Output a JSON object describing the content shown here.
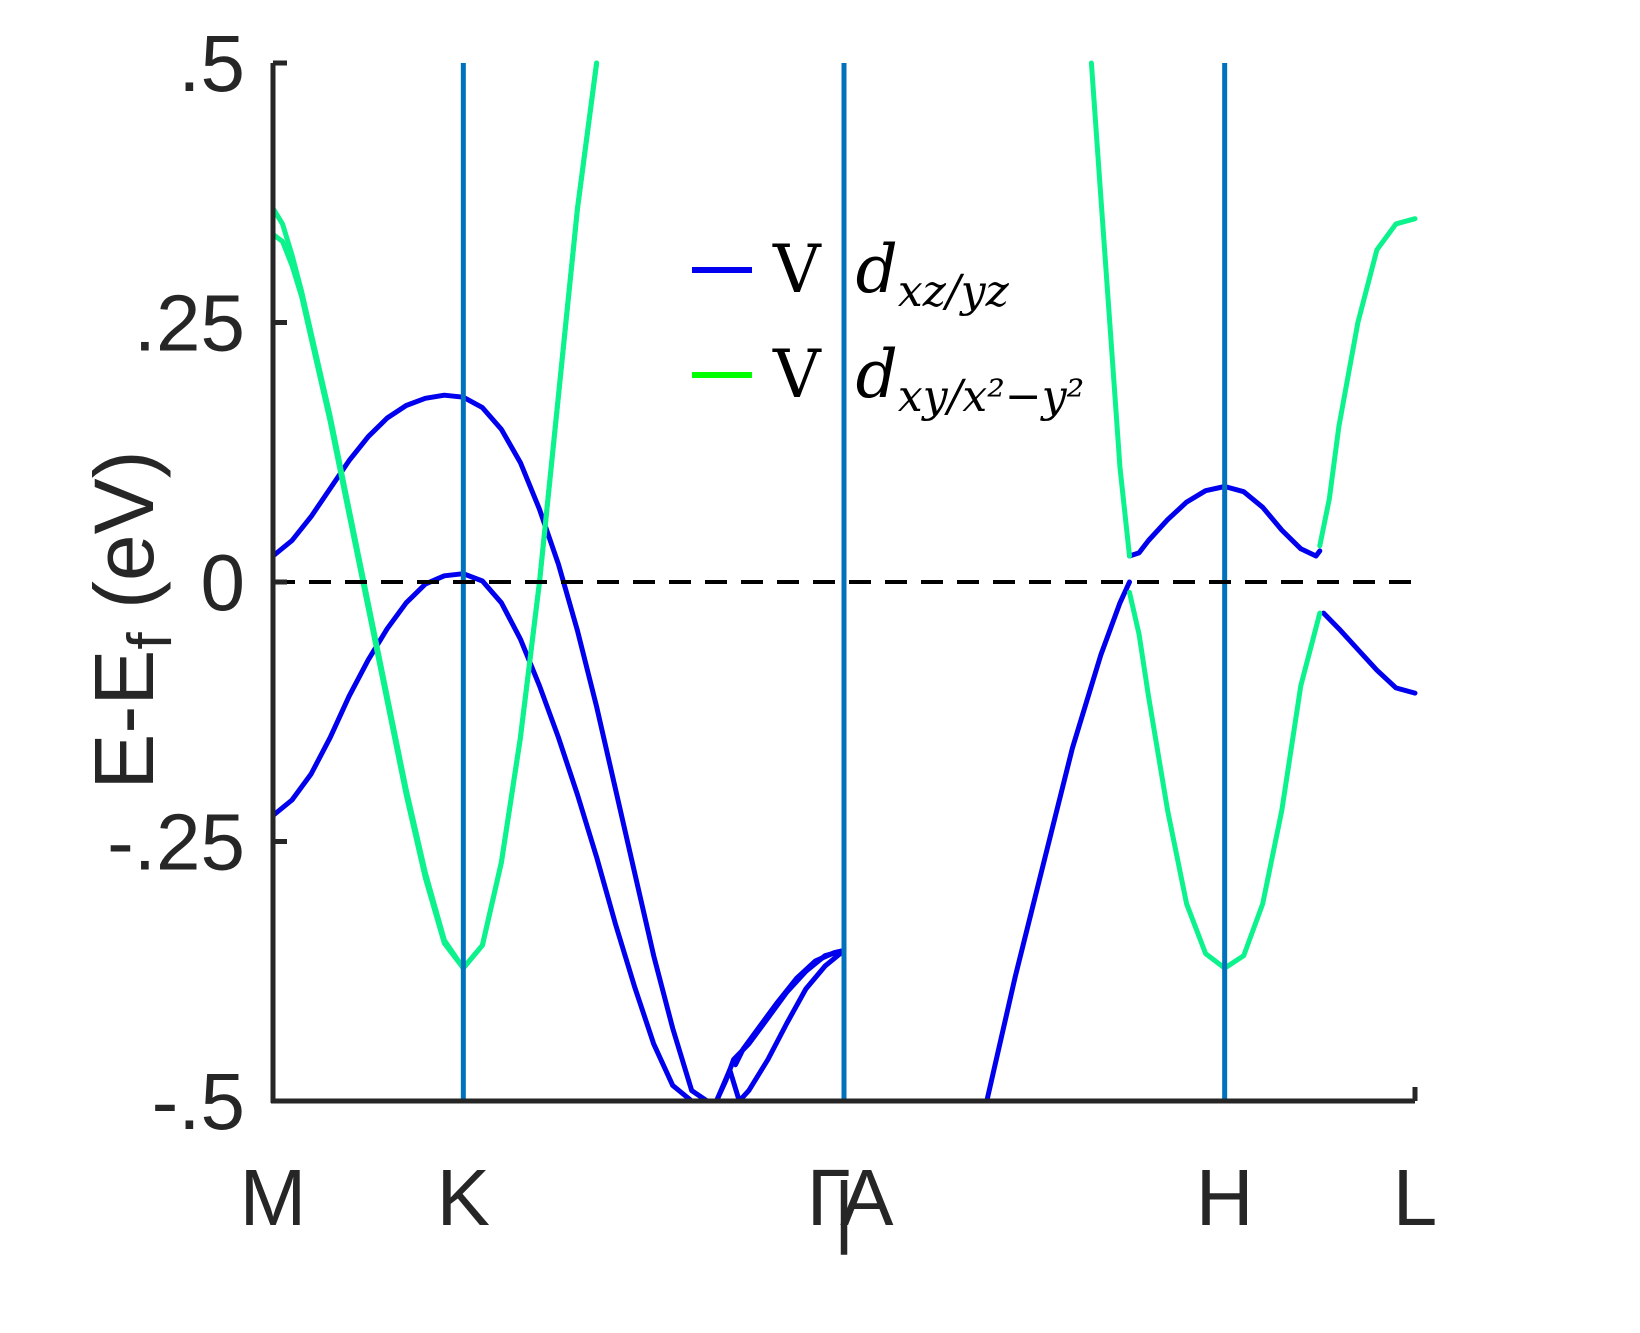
{
  "chart_data": {
    "type": "line",
    "title": "",
    "xlabel": "",
    "ylabel": "E-E_f (eV)",
    "ylabel_main": "E-E",
    "ylabel_sub": "f",
    "ylabel_tail": " (eV)",
    "ylim": [
      -0.5,
      0.5
    ],
    "xlim": [
      0,
      6
    ],
    "y_ticks": [
      {
        "value": -0.5,
        "label": "-.5"
      },
      {
        "value": -0.25,
        "label": "-.25"
      },
      {
        "value": 0,
        "label": "0"
      },
      {
        "value": 0.25,
        "label": ".25"
      },
      {
        "value": 0.5,
        "label": ".5"
      }
    ],
    "x_ticks": [
      {
        "value": 0,
        "label": "M"
      },
      {
        "value": 1,
        "label": "K"
      },
      {
        "value": 2.92,
        "label": "Γ"
      },
      {
        "value": 3.0,
        "label": "|"
      },
      {
        "value": 3.12,
        "label": "A"
      },
      {
        "value": 5,
        "label": "H"
      },
      {
        "value": 6,
        "label": "L"
      }
    ],
    "vlines": [
      1,
      3,
      5
    ],
    "fermi_level": 0,
    "grid": false,
    "legend_position": "upper-center",
    "colors": {
      "dxz": "#0000ee",
      "dxy_legend": "#00ff00",
      "dxy": "#0cf28c",
      "dxy_mix": "#1ab89a",
      "vline": "#0072bd",
      "axis": "#262626",
      "fermi": "#000000"
    },
    "legend": [
      {
        "prefix": "V",
        "math_base": "d",
        "math_sub": "xz/yz",
        "color_key": "dxz"
      },
      {
        "prefix": "V",
        "math_base": "d",
        "math_sub": "xy/x²−y²",
        "color_key": "dxy_legend"
      }
    ],
    "series": [
      {
        "color_key": "dxz",
        "x": [
          0,
          0.1,
          0.2,
          0.3,
          0.4,
          0.5,
          0.6,
          0.7,
          0.8,
          0.9,
          1.0,
          1.1,
          1.2,
          1.3,
          1.4,
          1.5,
          1.6,
          1.7,
          1.8,
          1.9,
          2.0,
          2.1,
          2.2,
          2.28
        ],
        "y": [
          0.025,
          0.04,
          0.063,
          0.09,
          0.117,
          0.14,
          0.158,
          0.17,
          0.177,
          0.18,
          0.178,
          0.168,
          0.147,
          0.115,
          0.07,
          0.017,
          -0.047,
          -0.12,
          -0.2,
          -0.28,
          -0.36,
          -0.43,
          -0.49,
          -0.5
        ]
      },
      {
        "color_key": "dxz",
        "x": [
          0,
          0.1,
          0.2,
          0.3,
          0.4,
          0.5,
          0.6,
          0.7,
          0.8,
          0.9,
          1.0,
          1.1,
          1.2,
          1.3,
          1.4,
          1.5,
          1.6,
          1.7,
          1.8,
          1.9,
          2.0,
          2.1,
          2.2,
          2.33,
          2.4,
          2.45
        ],
        "y": [
          -0.225,
          -0.21,
          -0.185,
          -0.15,
          -0.11,
          -0.075,
          -0.045,
          -0.02,
          -0.002,
          0.006,
          0.008,
          0.001,
          -0.02,
          -0.055,
          -0.1,
          -0.15,
          -0.205,
          -0.265,
          -0.33,
          -0.39,
          -0.445,
          -0.485,
          -0.5,
          -0.5,
          -0.47,
          -0.5
        ]
      },
      {
        "color_key": "dxz",
        "x": [
          2.33,
          2.38,
          2.42,
          2.5,
          2.6,
          2.7,
          2.8,
          2.9,
          3.0
        ],
        "y": [
          -0.5,
          -0.48,
          -0.46,
          -0.445,
          -0.42,
          -0.395,
          -0.375,
          -0.36,
          -0.355
        ]
      },
      {
        "color_key": "dxz",
        "x": [
          2.43,
          2.47,
          2.55,
          2.65,
          2.75,
          2.85,
          2.95,
          3.0
        ],
        "y": [
          -0.465,
          -0.45,
          -0.43,
          -0.405,
          -0.382,
          -0.365,
          -0.357,
          -0.355
        ]
      },
      {
        "color_key": "dxz",
        "x": [
          2.45,
          2.5,
          2.6,
          2.7,
          2.8,
          2.9,
          3.0
        ],
        "y": [
          -0.5,
          -0.49,
          -0.46,
          -0.425,
          -0.392,
          -0.37,
          -0.355
        ]
      },
      {
        "color_key": "dxz",
        "x": [
          3.75,
          3.9,
          4.05,
          4.2,
          4.35,
          4.45,
          4.5
        ],
        "y": [
          -0.5,
          -0.38,
          -0.27,
          -0.16,
          -0.07,
          -0.02,
          0.0
        ]
      },
      {
        "color_key": "dxz",
        "x": [
          4.5,
          4.55,
          4.6,
          4.7,
          4.8,
          4.9,
          5.0,
          5.1,
          5.2,
          5.3,
          5.4,
          5.48,
          5.5
        ],
        "y": [
          0.025,
          0.028,
          0.04,
          0.06,
          0.077,
          0.088,
          0.092,
          0.087,
          0.072,
          0.05,
          0.032,
          0.025,
          0.03
        ]
      },
      {
        "color_key": "dxz",
        "x": [
          5.52,
          5.6,
          5.7,
          5.8,
          5.9,
          6.0
        ],
        "y": [
          -0.03,
          -0.045,
          -0.065,
          -0.085,
          -0.102,
          -0.107
        ]
      },
      {
        "color_key": "dxy",
        "x": [
          0,
          0.05,
          0.1,
          0.15,
          0.2,
          0.3,
          0.4,
          0.5,
          0.6,
          0.7,
          0.8,
          0.9,
          1.0,
          1.1,
          1.2,
          1.3,
          1.4,
          1.5,
          1.6,
          1.7
        ],
        "y": [
          0.36,
          0.345,
          0.315,
          0.28,
          0.24,
          0.16,
          0.07,
          -0.02,
          -0.11,
          -0.2,
          -0.28,
          -0.345,
          -0.372,
          -0.35,
          -0.27,
          -0.15,
          0.0,
          0.18,
          0.36,
          0.5
        ]
      },
      {
        "color_key": "dxy",
        "x": [
          0,
          0.05,
          0.1,
          0.15,
          0.2,
          0.3,
          0.4,
          0.5,
          0.6,
          0.7,
          0.8,
          0.9,
          1.0,
          1.1,
          1.2,
          1.3,
          1.4,
          1.5,
          1.6,
          1.7
        ],
        "y": [
          0.335,
          0.328,
          0.305,
          0.275,
          0.235,
          0.155,
          0.065,
          -0.025,
          -0.115,
          -0.205,
          -0.285,
          -0.348,
          -0.372,
          -0.35,
          -0.27,
          -0.15,
          0.0,
          0.18,
          0.36,
          0.5
        ]
      },
      {
        "color_key": "dxy",
        "x": [
          4.3,
          4.35,
          4.4,
          4.45,
          4.5
        ],
        "y": [
          0.5,
          0.37,
          0.24,
          0.11,
          0.025
        ]
      },
      {
        "color_key": "dxy",
        "x": [
          4.5,
          4.55,
          4.6,
          4.7,
          4.8,
          4.9,
          5.0,
          5.1,
          5.2,
          5.3,
          5.4,
          5.5
        ],
        "y": [
          -0.01,
          -0.05,
          -0.11,
          -0.22,
          -0.31,
          -0.358,
          -0.372,
          -0.36,
          -0.31,
          -0.22,
          -0.1,
          -0.03
        ]
      },
      {
        "color_key": "dxy",
        "x": [
          5.5,
          5.55,
          5.6,
          5.7,
          5.8,
          5.9,
          6.0
        ],
        "y": [
          0.035,
          0.08,
          0.15,
          0.25,
          0.32,
          0.345,
          0.35
        ]
      }
    ]
  }
}
